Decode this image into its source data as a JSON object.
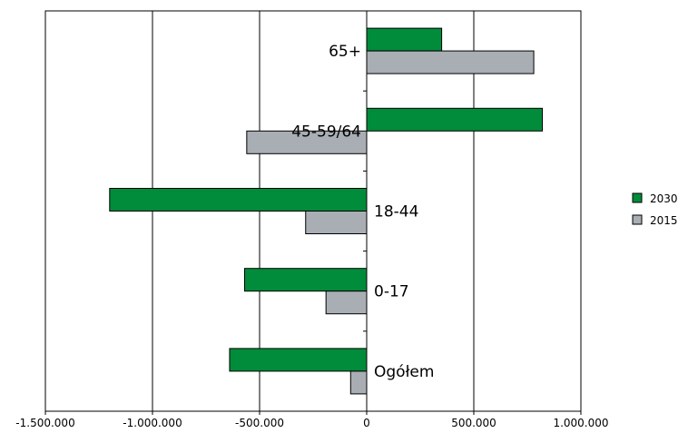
{
  "chart_data": {
    "type": "bar",
    "orientation": "horizontal",
    "categories": [
      "65+",
      "45-59/64",
      "18-44",
      "0-17",
      "Ogółem"
    ],
    "series": [
      {
        "name": "2030",
        "color": "#008c3a",
        "values": [
          350000,
          820000,
          -1200000,
          -570000,
          -640000
        ]
      },
      {
        "name": "2015",
        "color": "#a8aeb4",
        "values": [
          780000,
          -560000,
          -285000,
          -190000,
          -75000
        ]
      }
    ],
    "xlim": [
      -1500000,
      1000000
    ],
    "xticks": [
      -1500000,
      -1000000,
      -500000,
      0,
      500000,
      1000000
    ],
    "xtick_labels": [
      "-1.500.000",
      "-1.000.000",
      "-500.000",
      "0",
      "500.000",
      "1.000.000"
    ],
    "grid": "vertical",
    "legend_position": "right",
    "title": "",
    "xlabel": "",
    "ylabel": ""
  }
}
